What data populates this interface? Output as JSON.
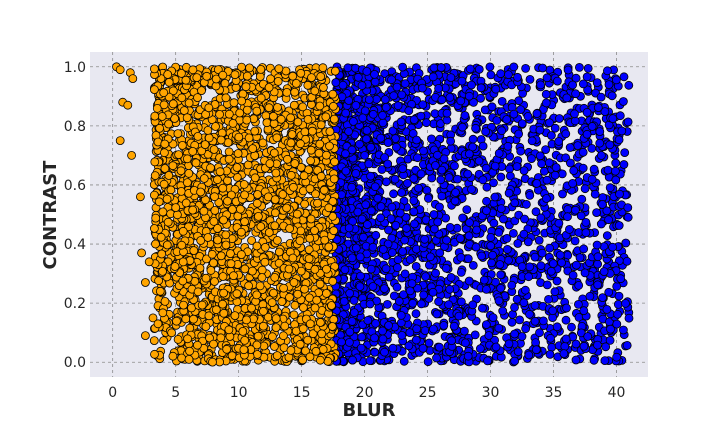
{
  "chart_data": {
    "type": "scatter",
    "title": "",
    "xlabel": "BLUR",
    "ylabel": "CONTRAST",
    "xlim": [
      -1.8,
      42.5
    ],
    "ylim": [
      -0.05,
      1.05
    ],
    "x_ticks": [
      0,
      5,
      10,
      15,
      20,
      25,
      30,
      35,
      40
    ],
    "y_ticks": [
      0.0,
      0.2,
      0.4,
      0.6,
      0.8,
      1.0
    ],
    "x_tick_labels": [
      "0",
      "5",
      "10",
      "15",
      "20",
      "25",
      "30",
      "35",
      "40"
    ],
    "y_tick_labels": [
      "0.0",
      "0.2",
      "0.4",
      "0.6",
      "0.8",
      "1.0"
    ],
    "grid": true,
    "background": "#e8e8f1",
    "series": [
      {
        "color": "#ffa500",
        "edgecolor": "#000000",
        "x_range": [
          0,
          17.7
        ],
        "y_range": [
          0,
          1
        ],
        "points": [
          [
            0.3,
            1.0
          ],
          [
            0.6,
            0.99
          ],
          [
            0.8,
            0.88
          ],
          [
            1.2,
            0.87
          ],
          [
            1.4,
            0.98
          ],
          [
            1.6,
            0.96
          ],
          [
            0.6,
            0.75
          ],
          [
            1.5,
            0.7
          ],
          [
            2.2,
            0.56
          ],
          [
            2.3,
            0.37
          ],
          [
            2.6,
            0.27
          ],
          [
            2.6,
            0.09
          ],
          [
            3.2,
            0.15
          ],
          [
            3.6,
            0.13
          ],
          [
            2.9,
            0.34
          ],
          [
            3.4,
            0.4
          ]
        ]
      },
      {
        "color": "#0000ff",
        "edgecolor": "#000000",
        "x_range": [
          17.7,
          41
        ],
        "y_range": [
          0,
          1
        ],
        "points": []
      }
    ]
  }
}
